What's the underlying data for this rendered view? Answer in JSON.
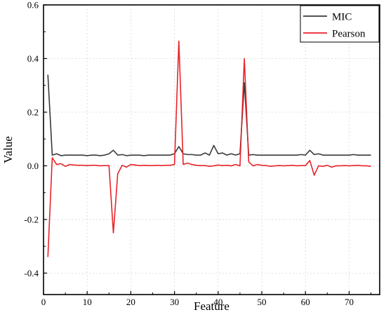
{
  "chart_data": {
    "type": "line",
    "title": "",
    "xlabel": "Feature",
    "ylabel": "Value",
    "xlim": [
      0,
      77
    ],
    "ylim": [
      -0.48,
      0.6
    ],
    "xticks": [
      0,
      10,
      20,
      30,
      40,
      50,
      60,
      70
    ],
    "yticks": [
      -0.4,
      -0.2,
      0.0,
      0.2,
      0.4,
      0.6
    ],
    "xtick_labels": [
      "0",
      "10",
      "20",
      "30",
      "40",
      "50",
      "60",
      "70"
    ],
    "ytick_labels": [
      "-0.4",
      "-0.2",
      "0.0",
      "0.2",
      "0.4",
      "0.6"
    ],
    "grid": true,
    "legend_position": "top-right",
    "x": [
      1,
      2,
      3,
      4,
      5,
      6,
      7,
      8,
      9,
      10,
      11,
      12,
      13,
      14,
      15,
      16,
      17,
      18,
      19,
      20,
      21,
      22,
      23,
      24,
      25,
      26,
      27,
      28,
      29,
      30,
      31,
      32,
      33,
      34,
      35,
      36,
      37,
      38,
      39,
      40,
      41,
      42,
      43,
      44,
      45,
      46,
      47,
      48,
      49,
      50,
      51,
      52,
      53,
      54,
      55,
      56,
      57,
      58,
      59,
      60,
      61,
      62,
      63,
      64,
      65,
      66,
      67,
      68,
      69,
      70,
      71,
      72,
      73,
      74,
      75
    ],
    "series": [
      {
        "name": "MIC",
        "color": "#3a3a3a",
        "values": [
          0.34,
          0.04,
          0.045,
          0.038,
          0.04,
          0.04,
          0.04,
          0.04,
          0.04,
          0.038,
          0.04,
          0.04,
          0.038,
          0.04,
          0.045,
          0.058,
          0.04,
          0.042,
          0.038,
          0.04,
          0.04,
          0.04,
          0.038,
          0.04,
          0.04,
          0.04,
          0.04,
          0.04,
          0.04,
          0.045,
          0.072,
          0.045,
          0.042,
          0.042,
          0.04,
          0.04,
          0.048,
          0.04,
          0.076,
          0.045,
          0.048,
          0.04,
          0.045,
          0.04,
          0.045,
          0.31,
          0.04,
          0.042,
          0.04,
          0.04,
          0.04,
          0.04,
          0.04,
          0.04,
          0.04,
          0.04,
          0.04,
          0.04,
          0.042,
          0.04,
          0.058,
          0.042,
          0.045,
          0.04,
          0.04,
          0.04,
          0.04,
          0.04,
          0.04,
          0.04,
          0.042,
          0.04,
          0.04,
          0.04,
          0.04
        ]
      },
      {
        "name": "Pearson",
        "color": "#e8232a",
        "values": [
          -0.34,
          0.03,
          0.005,
          0.008,
          -0.002,
          0.005,
          0.003,
          0.002,
          0.002,
          0.001,
          0.002,
          0.002,
          0.0,
          0.001,
          0.001,
          -0.25,
          -0.03,
          0.002,
          -0.005,
          0.005,
          0.003,
          0.001,
          0.002,
          0.001,
          0.001,
          0.002,
          0.001,
          0.002,
          0.002,
          0.005,
          0.465,
          0.005,
          0.01,
          0.005,
          0.002,
          0.001,
          0.001,
          -0.002,
          0.0,
          0.003,
          0.001,
          0.002,
          0.0,
          0.005,
          0.0,
          0.4,
          0.015,
          0.0,
          0.005,
          0.002,
          0.001,
          -0.002,
          0.0,
          0.001,
          0.0,
          0.001,
          0.002,
          0.0,
          0.001,
          0.001,
          0.02,
          -0.035,
          0.0,
          -0.002,
          0.002,
          -0.005,
          0.0,
          0.0,
          0.001,
          0.0,
          0.001,
          0.002,
          0.0,
          0.0,
          -0.002
        ]
      }
    ]
  }
}
